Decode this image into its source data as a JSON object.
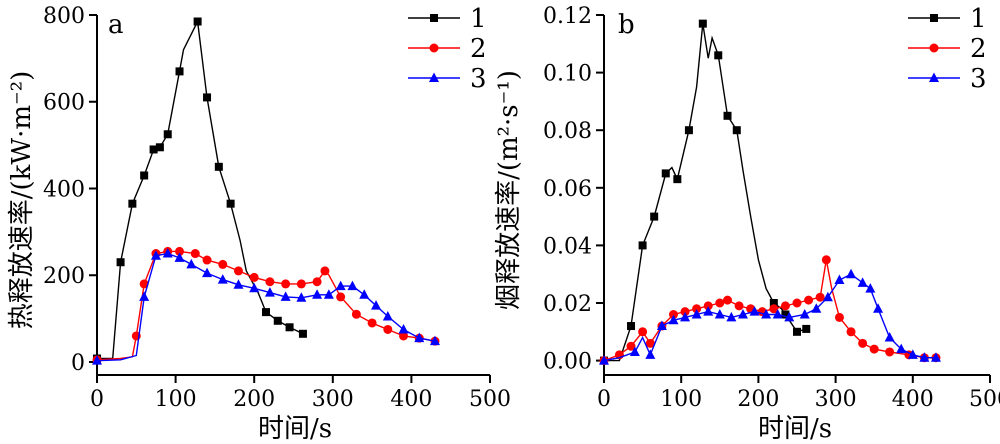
{
  "chart_data": [
    {
      "type": "line",
      "panel_label": "a",
      "xlabel": "时间/s",
      "ylabel": "热释放速率/(kW·m⁻²)",
      "xlim": [
        0,
        500
      ],
      "ylim": [
        -30,
        800
      ],
      "xticks": [
        0,
        100,
        200,
        300,
        400,
        500
      ],
      "yticks": [
        0,
        200,
        400,
        600,
        800
      ],
      "xtick_labels": [
        "0",
        "100",
        "200",
        "300",
        "400",
        "500"
      ],
      "ytick_labels": [
        "0",
        "200",
        "400",
        "600",
        "800"
      ],
      "legend_position": "top-right",
      "series": [
        {
          "name": "1",
          "color": "#000000",
          "marker": "square",
          "points": [
            [
              0,
              8
            ],
            [
              20,
              8
            ],
            [
              30,
              230
            ],
            [
              45,
              365
            ],
            [
              60,
              430
            ],
            [
              72,
              490
            ],
            [
              80,
              495
            ],
            [
              90,
              525
            ],
            [
              105,
              670
            ],
            [
              110,
              720
            ],
            [
              128,
              785
            ],
            [
              140,
              610
            ],
            [
              155,
              450
            ],
            [
              170,
              365
            ],
            [
              182,
              280
            ],
            [
              190,
              210
            ],
            [
              205,
              160
            ],
            [
              215,
              115
            ],
            [
              230,
              95
            ],
            [
              245,
              80
            ],
            [
              262,
              65
            ]
          ],
          "marker_x": [
            0,
            30,
            45,
            60,
            72,
            80,
            90,
            105,
            128,
            140,
            155,
            170,
            215,
            230,
            245,
            262
          ]
        },
        {
          "name": "2",
          "color": "#ff0000",
          "marker": "circle",
          "points": [
            [
              0,
              5
            ],
            [
              30,
              8
            ],
            [
              45,
              12
            ],
            [
              50,
              60
            ],
            [
              60,
              180
            ],
            [
              75,
              250
            ],
            [
              90,
              255
            ],
            [
              105,
              255
            ],
            [
              125,
              250
            ],
            [
              140,
              235
            ],
            [
              160,
              225
            ],
            [
              180,
              210
            ],
            [
              200,
              195
            ],
            [
              220,
              185
            ],
            [
              240,
              180
            ],
            [
              260,
              180
            ],
            [
              280,
              185
            ],
            [
              290,
              210
            ],
            [
              295,
              200
            ],
            [
              310,
              150
            ],
            [
              330,
              110
            ],
            [
              350,
              90
            ],
            [
              370,
              75
            ],
            [
              390,
              60
            ],
            [
              410,
              55
            ],
            [
              430,
              48
            ]
          ],
          "marker_x": [
            0,
            50,
            60,
            75,
            90,
            105,
            125,
            140,
            160,
            180,
            200,
            220,
            240,
            260,
            280,
            290,
            310,
            330,
            350,
            370,
            390,
            410,
            430
          ]
        },
        {
          "name": "3",
          "color": "#0000ff",
          "marker": "triangle",
          "points": [
            [
              0,
              3
            ],
            [
              30,
              5
            ],
            [
              50,
              15
            ],
            [
              60,
              150
            ],
            [
              75,
              245
            ],
            [
              90,
              250
            ],
            [
              105,
              240
            ],
            [
              120,
              225
            ],
            [
              140,
              205
            ],
            [
              160,
              190
            ],
            [
              180,
              178
            ],
            [
              200,
              170
            ],
            [
              220,
              160
            ],
            [
              240,
              150
            ],
            [
              260,
              148
            ],
            [
              280,
              155
            ],
            [
              295,
              155
            ],
            [
              310,
              175
            ],
            [
              325,
              175
            ],
            [
              340,
              155
            ],
            [
              355,
              130
            ],
            [
              370,
              105
            ],
            [
              390,
              75
            ],
            [
              410,
              55
            ],
            [
              430,
              48
            ]
          ],
          "marker_x": [
            0,
            60,
            75,
            90,
            105,
            120,
            140,
            160,
            180,
            200,
            220,
            240,
            260,
            280,
            295,
            310,
            325,
            340,
            355,
            370,
            390,
            410,
            430
          ]
        }
      ]
    },
    {
      "type": "line",
      "panel_label": "b",
      "xlabel": "时间/s",
      "ylabel": "烟释放速率/(m²·s⁻¹)",
      "xlim": [
        0,
        500
      ],
      "ylim": [
        -0.005,
        0.12
      ],
      "xticks": [
        0,
        100,
        200,
        300,
        400,
        500
      ],
      "yticks": [
        0,
        0.02,
        0.04,
        0.06,
        0.08,
        0.1,
        0.12
      ],
      "xtick_labels": [
        "0",
        "100",
        "200",
        "300",
        "400",
        "500"
      ],
      "ytick_labels": [
        "0.00",
        "0.02",
        "0.04",
        "0.06",
        "0.08",
        "0.10",
        "0.12"
      ],
      "legend_position": "top-right",
      "series": [
        {
          "name": "1",
          "color": "#000000",
          "marker": "square",
          "points": [
            [
              0,
              0
            ],
            [
              20,
              0
            ],
            [
              35,
              0.012
            ],
            [
              50,
              0.04
            ],
            [
              65,
              0.05
            ],
            [
              80,
              0.065
            ],
            [
              88,
              0.067
            ],
            [
              95,
              0.063
            ],
            [
              110,
              0.08
            ],
            [
              120,
              0.095
            ],
            [
              128,
              0.117
            ],
            [
              135,
              0.105
            ],
            [
              140,
              0.112
            ],
            [
              148,
              0.106
            ],
            [
              160,
              0.085
            ],
            [
              172,
              0.08
            ],
            [
              180,
              0.066
            ],
            [
              190,
              0.05
            ],
            [
              200,
              0.035
            ],
            [
              210,
              0.025
            ],
            [
              220,
              0.02
            ],
            [
              230,
              0.018
            ],
            [
              240,
              0.014
            ],
            [
              250,
              0.01
            ],
            [
              262,
              0.011
            ]
          ],
          "marker_x": [
            0,
            35,
            50,
            65,
            80,
            95,
            110,
            128,
            148,
            160,
            172,
            220,
            235,
            250,
            262
          ]
        },
        {
          "name": "2",
          "color": "#ff0000",
          "marker": "circle",
          "points": [
            [
              0,
              0
            ],
            [
              20,
              0.002
            ],
            [
              35,
              0.005
            ],
            [
              50,
              0.01
            ],
            [
              60,
              0.006
            ],
            [
              75,
              0.012
            ],
            [
              90,
              0.016
            ],
            [
              105,
              0.017
            ],
            [
              120,
              0.018
            ],
            [
              135,
              0.019
            ],
            [
              150,
              0.02
            ],
            [
              160,
              0.021
            ],
            [
              175,
              0.019
            ],
            [
              190,
              0.018
            ],
            [
              205,
              0.017
            ],
            [
              220,
              0.018
            ],
            [
              235,
              0.019
            ],
            [
              250,
              0.02
            ],
            [
              265,
              0.021
            ],
            [
              280,
              0.022
            ],
            [
              288,
              0.035
            ],
            [
              295,
              0.025
            ],
            [
              305,
              0.015
            ],
            [
              320,
              0.01
            ],
            [
              335,
              0.006
            ],
            [
              350,
              0.004
            ],
            [
              370,
              0.003
            ],
            [
              395,
              0.002
            ],
            [
              415,
              0.001
            ],
            [
              430,
              0.001
            ]
          ],
          "marker_x": [
            0,
            20,
            35,
            50,
            60,
            75,
            90,
            105,
            120,
            135,
            150,
            160,
            175,
            190,
            205,
            220,
            235,
            250,
            265,
            280,
            288,
            305,
            320,
            335,
            350,
            370,
            395,
            415,
            430
          ]
        },
        {
          "name": "3",
          "color": "#0000ff",
          "marker": "triangle",
          "points": [
            [
              0,
              0
            ],
            [
              20,
              0.001
            ],
            [
              40,
              0.003
            ],
            [
              50,
              0.008
            ],
            [
              60,
              0.002
            ],
            [
              75,
              0.012
            ],
            [
              90,
              0.014
            ],
            [
              105,
              0.015
            ],
            [
              120,
              0.016
            ],
            [
              135,
              0.017
            ],
            [
              150,
              0.016
            ],
            [
              165,
              0.015
            ],
            [
              180,
              0.016
            ],
            [
              195,
              0.017
            ],
            [
              210,
              0.016
            ],
            [
              225,
              0.016
            ],
            [
              240,
              0.015
            ],
            [
              260,
              0.016
            ],
            [
              275,
              0.018
            ],
            [
              290,
              0.022
            ],
            [
              305,
              0.028
            ],
            [
              320,
              0.03
            ],
            [
              335,
              0.027
            ],
            [
              345,
              0.025
            ],
            [
              355,
              0.018
            ],
            [
              370,
              0.008
            ],
            [
              385,
              0.004
            ],
            [
              400,
              0.002
            ],
            [
              415,
              0.001
            ],
            [
              430,
              0.001
            ]
          ],
          "marker_x": [
            0,
            40,
            60,
            75,
            90,
            105,
            120,
            135,
            150,
            165,
            180,
            195,
            210,
            225,
            240,
            260,
            275,
            290,
            305,
            320,
            335,
            345,
            355,
            370,
            385,
            400,
            415,
            430
          ]
        }
      ]
    }
  ]
}
